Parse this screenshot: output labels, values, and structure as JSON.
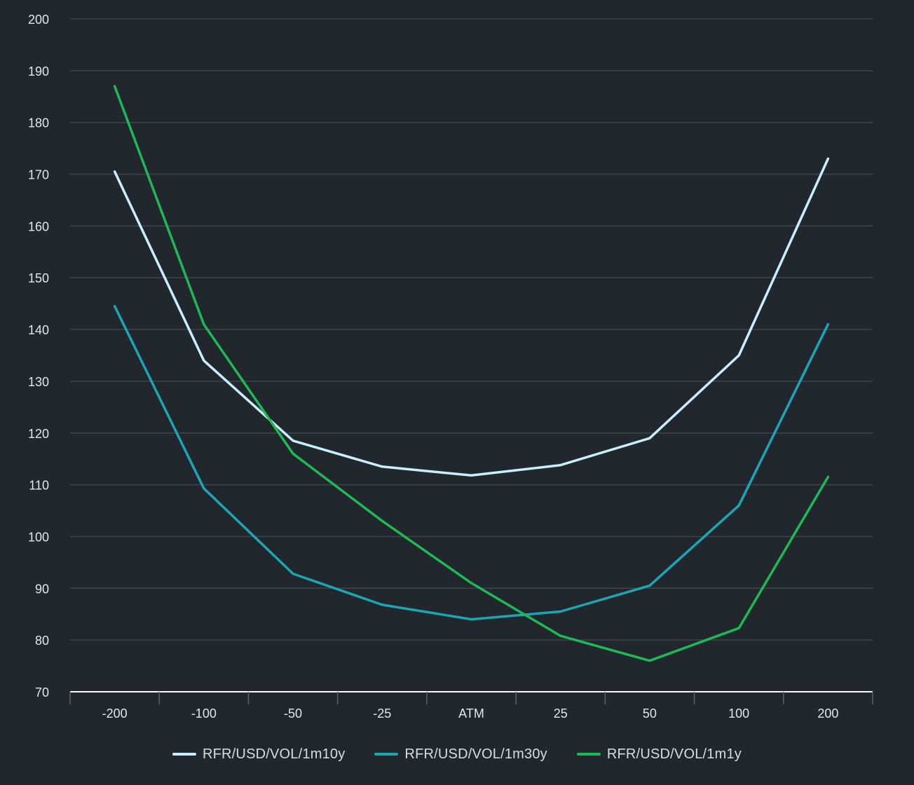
{
  "chart_data": {
    "type": "line",
    "title": "",
    "xlabel": "",
    "ylabel": "",
    "categories": [
      "-200",
      "-100",
      "-50",
      "-25",
      "ATM",
      "25",
      "50",
      "100",
      "200"
    ],
    "ylim": [
      70,
      200
    ],
    "yticks": [
      70,
      80,
      90,
      100,
      110,
      120,
      130,
      140,
      150,
      160,
      170,
      180,
      190,
      200
    ],
    "grid": true,
    "legend_position": "bottom-center",
    "background": "#22272e",
    "series": [
      {
        "name": "RFR/USD/VOL/1m10y",
        "color": "#c8efff",
        "values": [
          170.5,
          134,
          118.5,
          113.5,
          111.8,
          113.8,
          119,
          135,
          173
        ]
      },
      {
        "name": "RFR/USD/VOL/1m30y",
        "color": "#1aa6b2",
        "values": [
          144.5,
          109.3,
          92.8,
          86.8,
          84,
          85.5,
          90.5,
          106,
          141
        ]
      },
      {
        "name": "RFR/USD/VOL/1m1y",
        "color": "#1db954",
        "values": [
          187,
          141,
          116,
          103,
          91,
          80.8,
          76,
          82.3,
          111.5
        ]
      }
    ]
  }
}
